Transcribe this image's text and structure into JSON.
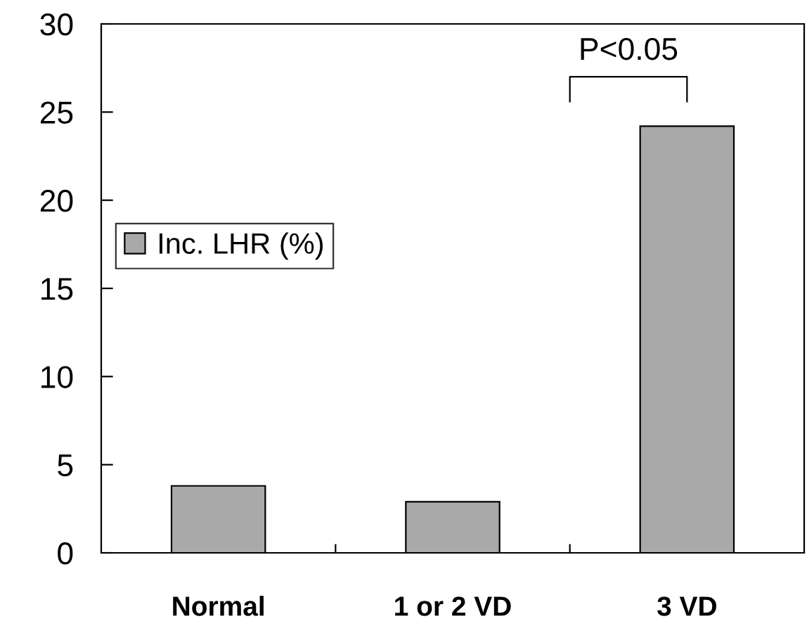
{
  "chart_data": {
    "type": "bar",
    "categories": [
      "Normal",
      "1 or 2 VD",
      "3 VD"
    ],
    "series": [
      {
        "name": "Inc. LHR (%)",
        "color": "#a9a9a9",
        "values": [
          3.8,
          2.9,
          24.2
        ]
      }
    ],
    "ylim": [
      0,
      30
    ],
    "yticks": [
      0,
      5,
      10,
      15,
      20,
      25,
      30
    ],
    "grid": false,
    "legend": "left",
    "annotations": [
      "P<0.05"
    ]
  }
}
